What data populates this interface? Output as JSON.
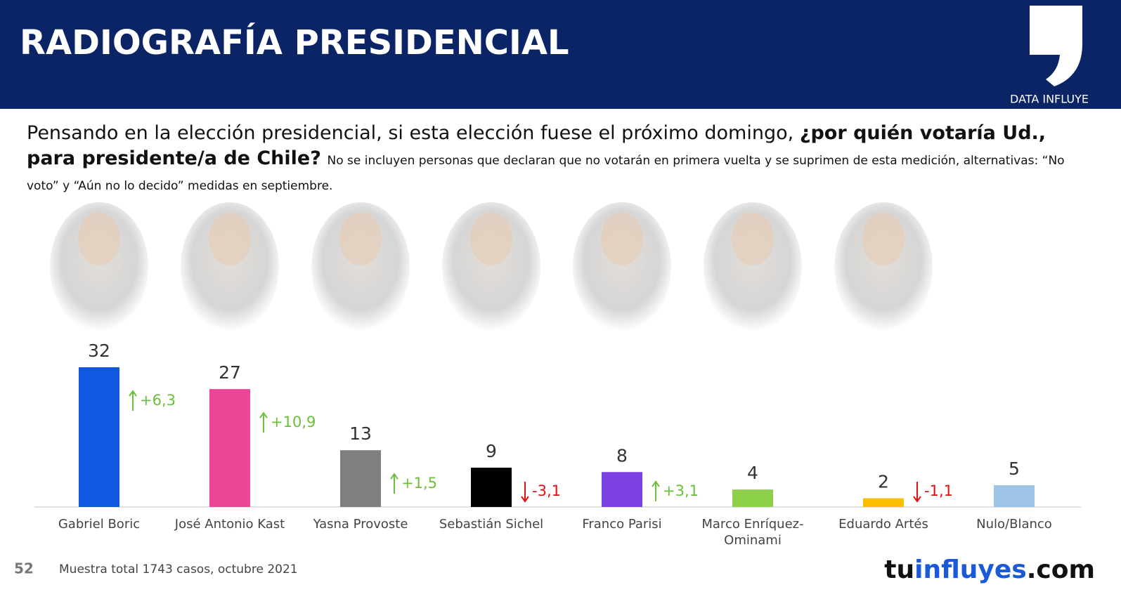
{
  "header": {
    "title": "RADIOGRAFÍA PRESIDENCIAL",
    "brand": "DATA INFLUYE"
  },
  "question": {
    "plain": "Pensando en la elección presidencial, si esta elección fuese el próximo domingo,",
    "bold": "¿por quién votaría Ud., para presidente/a de Chile?",
    "note": "No se incluyen personas que declaran que no votarán en primera vuelta y se suprimen de esta medición, alternativas: “No voto” y “Aún no lo decido” medidas en septiembre."
  },
  "chart_data": {
    "type": "bar",
    "categories": [
      "Gabriel Boric",
      "José Antonio Kast",
      "Yasna Provoste",
      "Sebastián Sichel",
      "Franco Parisi",
      "Marco Enríquez-Ominami",
      "Eduardo Artés",
      "Nulo/Blanco"
    ],
    "values": [
      32,
      27,
      13,
      9,
      8,
      4,
      2,
      5
    ],
    "colors": [
      "#1058e0",
      "#ec4698",
      "#7f7f7f",
      "#000000",
      "#7b40e0",
      "#8dd04a",
      "#fbbf00",
      "#9dc3e6"
    ],
    "changes": [
      6.3,
      10.9,
      1.5,
      -3.1,
      3.1,
      null,
      -1.1,
      null
    ],
    "change_labels": [
      "+6,3",
      "+10,9",
      "+1,5",
      "-3,1",
      "+3,1",
      null,
      "-1,1",
      null
    ]
  },
  "footer": {
    "page": "52",
    "source": "Muestra total 1743 casos, octubre 2021",
    "logo_a": "tu",
    "logo_b": "influyes",
    "logo_c": ".com"
  }
}
